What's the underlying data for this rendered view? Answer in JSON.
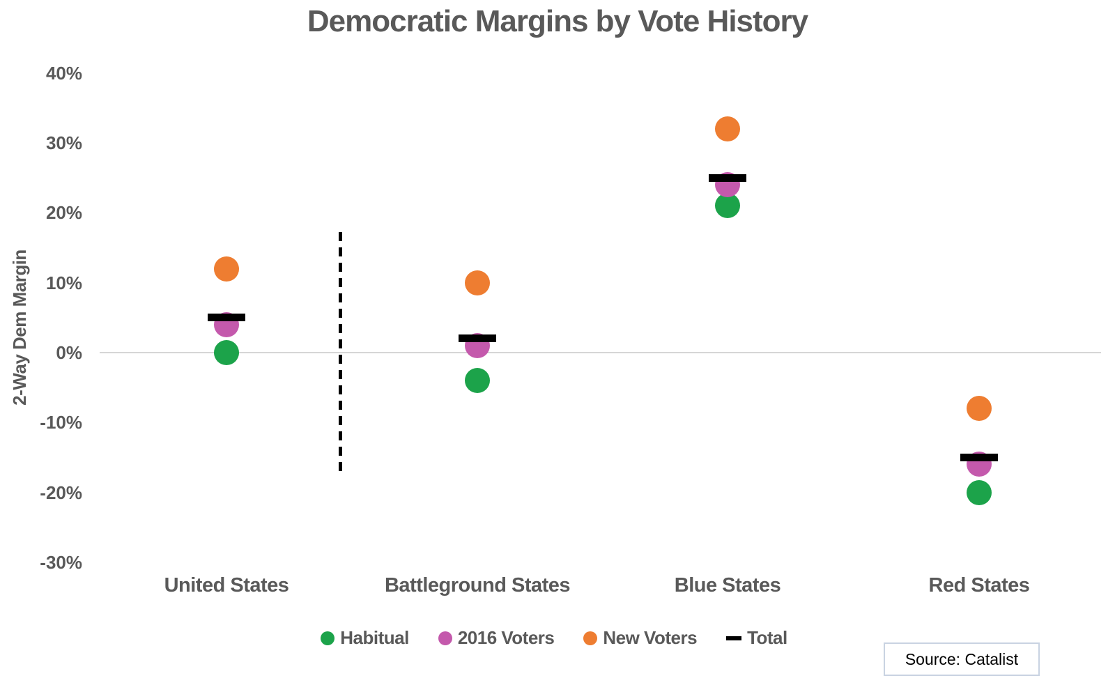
{
  "title": "Democratic Margins by Vote History",
  "y_axis_title": "2-Way Dem Margin",
  "source_label": "Source: Catalist",
  "text_color": "#595959",
  "gridline_color": "#d6d6d6",
  "chart_data": {
    "type": "scatter",
    "title": "Democratic Margins by Vote History",
    "xlabel": "",
    "ylabel": "2-Way Dem Margin",
    "categories": [
      "United States",
      "Battleground States",
      "Blue States",
      "Red States"
    ],
    "series": [
      {
        "name": "Habitual",
        "marker": "circle",
        "color": "#1CA34A",
        "values": [
          0,
          -4,
          21,
          -20
        ]
      },
      {
        "name": "2016 Voters",
        "marker": "circle",
        "color": "#C459AC",
        "values": [
          4,
          1,
          24,
          -16
        ]
      },
      {
        "name": "New Voters",
        "marker": "circle",
        "color": "#EE7D31",
        "values": [
          12,
          10,
          32,
          -8
        ]
      },
      {
        "name": "Total",
        "marker": "dash",
        "color": "#000000",
        "values": [
          5,
          2,
          25,
          -15
        ]
      }
    ],
    "yticks": [
      {
        "label": "40%",
        "value": 40
      },
      {
        "label": "30%",
        "value": 30
      },
      {
        "label": "20%",
        "value": 20
      },
      {
        "label": "10%",
        "value": 10
      },
      {
        "label": "0%",
        "value": 0
      },
      {
        "label": "-10%",
        "value": -10
      },
      {
        "label": "-20%",
        "value": -20
      },
      {
        "label": "-30%",
        "value": -30
      }
    ],
    "ylim": [
      -35,
      44
    ],
    "grid": "zero-line-only",
    "legend_position": "bottom",
    "annotations": [
      {
        "type": "dashed-vertical-divider",
        "between": [
          "United States",
          "Battleground States"
        ]
      }
    ]
  }
}
